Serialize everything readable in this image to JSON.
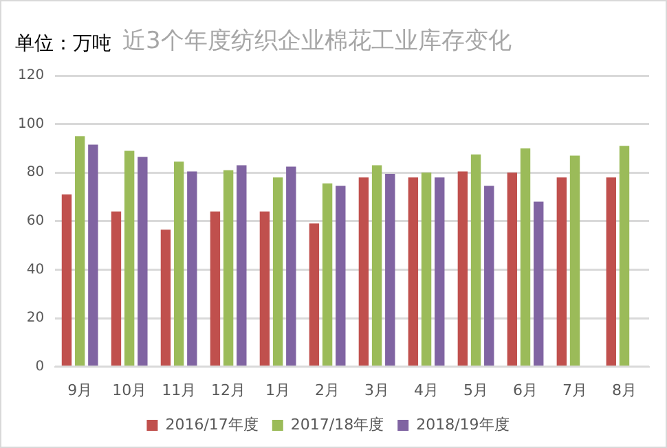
{
  "chart_data": {
    "type": "bar",
    "title": "近3个年度纺织企业棉花工业库存变化",
    "annotations": [
      "单位：万吨"
    ],
    "categories": [
      "9月",
      "10月",
      "11月",
      "12月",
      "1月",
      "2月",
      "3月",
      "4月",
      "5月",
      "6月",
      "7月",
      "8月"
    ],
    "series": [
      {
        "name": "2016/17年度",
        "color": "#c0504d",
        "values": [
          71,
          64,
          56.5,
          64,
          64,
          59,
          78,
          78,
          80.5,
          80,
          78,
          78
        ]
      },
      {
        "name": "2017/18年度",
        "color": "#9bbb59",
        "values": [
          95,
          89,
          84.5,
          81,
          78,
          75.5,
          83,
          80,
          87.5,
          90,
          87,
          91
        ]
      },
      {
        "name": "2018/19年度",
        "color": "#8064a2",
        "values": [
          91.5,
          86.5,
          80.5,
          83,
          82.5,
          74.5,
          79.5,
          78,
          74.5,
          68,
          null,
          null
        ]
      }
    ],
    "ylim": [
      0,
      120
    ],
    "yticks": [
      0,
      20,
      40,
      60,
      80,
      100,
      120
    ],
    "grid": "y",
    "legend": "bottom"
  }
}
